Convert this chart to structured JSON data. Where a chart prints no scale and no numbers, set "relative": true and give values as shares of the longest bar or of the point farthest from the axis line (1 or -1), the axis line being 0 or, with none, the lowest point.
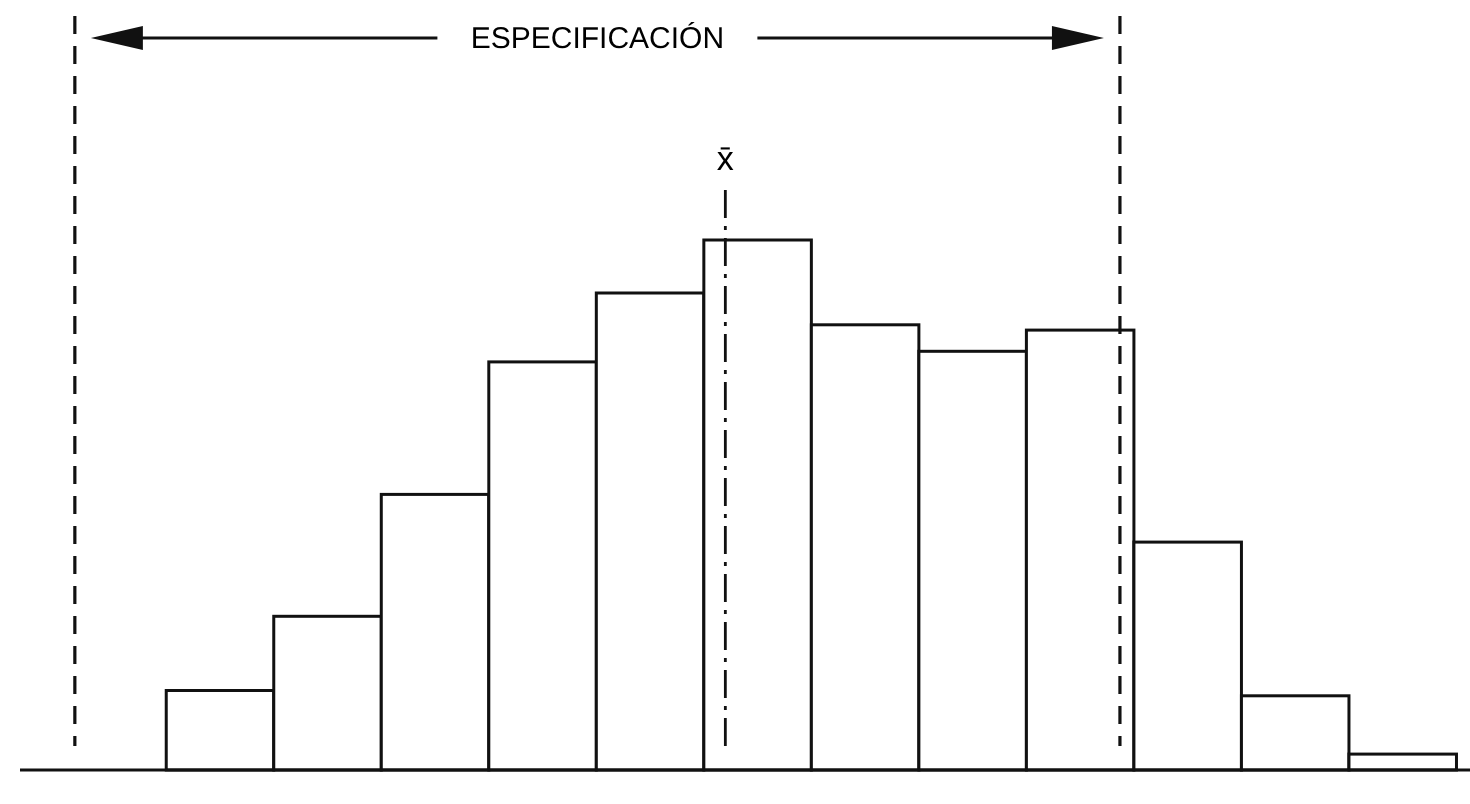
{
  "chart_data": {
    "type": "bar",
    "relative": true,
    "categories": [
      null,
      null,
      null,
      null,
      null,
      null,
      null,
      null,
      null,
      null,
      null,
      null
    ],
    "values": [
      0.15,
      0.29,
      0.52,
      0.77,
      0.9,
      1,
      0.84,
      0.79,
      0.83,
      0.43,
      0.14,
      0.03
    ],
    "color": "#ffffff",
    "tick_labels": false,
    "grid": false,
    "legend": false,
    "annotations": [
      "ESPECIFICACIÓN",
      "x̄"
    ]
  }
}
